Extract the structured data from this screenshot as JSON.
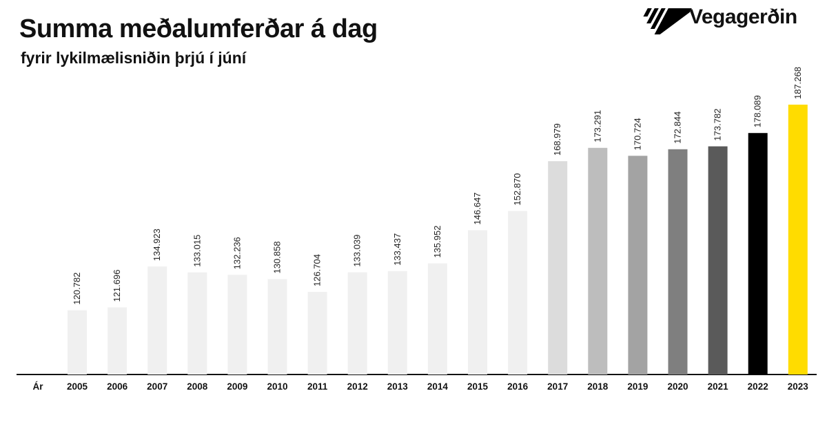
{
  "header": {
    "title": "Summa meðalumferðar á dag",
    "subtitle": "fyrir lykilmælisniðin þrjú í júní",
    "logo_text": "Vegagerðin"
  },
  "chart_data": {
    "type": "bar",
    "title": "Summa meðalumferðar á dag",
    "subtitle": "fyrir lykilmælisniðin þrjú í júní",
    "xlabel": "Ár",
    "ylabel": "",
    "categories": [
      "2005",
      "2006",
      "2007",
      "2008",
      "2009",
      "2010",
      "2011",
      "2012",
      "2013",
      "2014",
      "2015",
      "2016",
      "2017",
      "2018",
      "2019",
      "2020",
      "2021",
      "2022",
      "2023"
    ],
    "values": [
      120782,
      121696,
      134923,
      133015,
      132236,
      130858,
      126704,
      133039,
      133437,
      135952,
      146647,
      152870,
      168979,
      173291,
      170724,
      172844,
      173782,
      178089,
      187268
    ],
    "value_labels": [
      "120.782",
      "121.696",
      "134.923",
      "133.015",
      "132.236",
      "130.858",
      "126.704",
      "133.039",
      "133.437",
      "135.952",
      "146.647",
      "152.870",
      "168.979",
      "173.291",
      "170.724",
      "172.844",
      "173.782",
      "178.089",
      "187.268"
    ],
    "colors": [
      "#f0f0f0",
      "#f0f0f0",
      "#f0f0f0",
      "#f0f0f0",
      "#f0f0f0",
      "#f0f0f0",
      "#f0f0f0",
      "#f0f0f0",
      "#f0f0f0",
      "#f0f0f0",
      "#f0f0f0",
      "#f0f0f0",
      "#dcdcdc",
      "#bdbdbd",
      "#a3a3a3",
      "#7f7f7f",
      "#5a5a5a",
      "#000000",
      "#ffdc00"
    ],
    "ylim": [
      100000,
      190000
    ],
    "grid": false,
    "legend": "none"
  }
}
